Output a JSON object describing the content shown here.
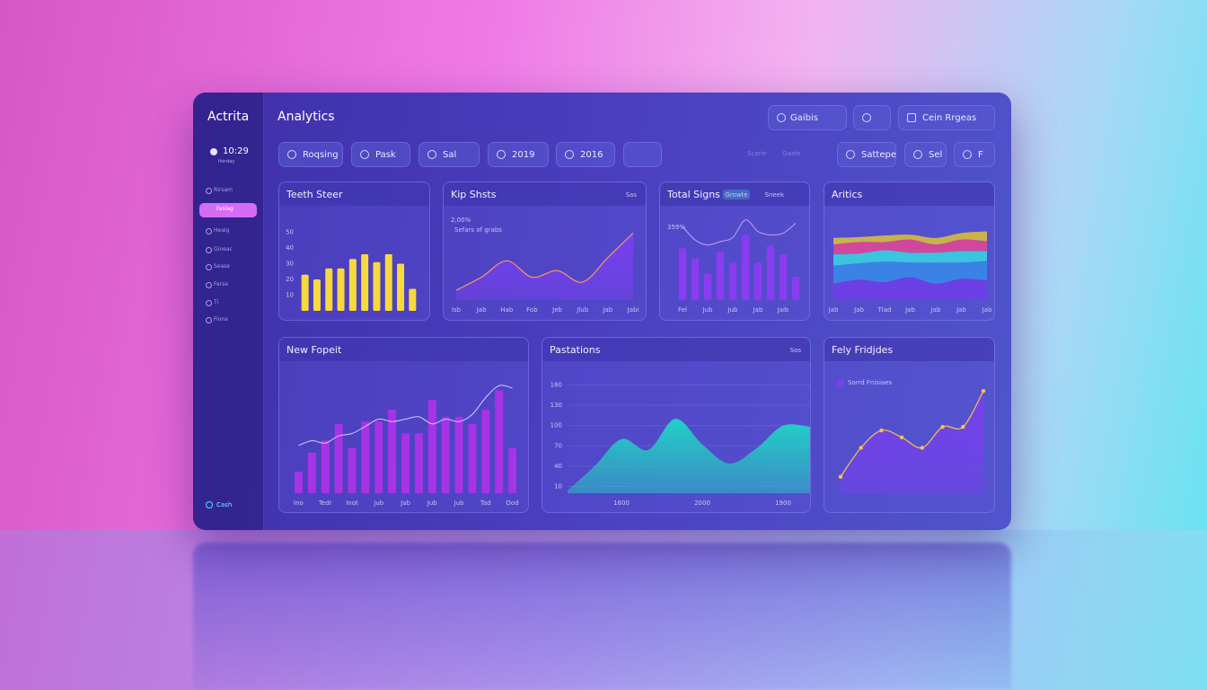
{
  "app": {
    "brand": "Actrita",
    "page_title": "Analytics",
    "time": "10:29",
    "time_sub": "Ihinday"
  },
  "top_buttons": [
    "Gaibis",
    "Cein Rrgeas"
  ],
  "filters": [
    "Roqsing",
    "Pask",
    "Sal",
    "2019",
    "2016"
  ],
  "hint_links": [
    "Scarie",
    "Gaale"
  ],
  "right_filters": [
    "Sattepe",
    "Sel",
    "F"
  ],
  "sidebar": {
    "items": [
      "Rirsam",
      "Faslag",
      "Heaig",
      "Gineac",
      "Sease",
      "Ferse",
      "Ti",
      "Fiona"
    ],
    "active": 1,
    "footer": "Cash"
  },
  "charts": [
    {
      "type": "bar",
      "title": "Teeth Steer",
      "values": [
        23,
        20,
        27,
        27,
        33,
        36,
        31,
        36,
        30,
        14
      ],
      "color": "#f7d93e",
      "ylim": [
        0,
        60
      ],
      "yticks": [
        10,
        20,
        30,
        40,
        50
      ],
      "grid": false
    },
    {
      "type": "area",
      "title": "Kip Shsts",
      "header_note": "Sas",
      "headline": "2,00%",
      "subline": "Sefars of grabs",
      "categories": [
        "Isb",
        "Jab",
        "Hab",
        "Fob",
        "Jeb",
        "Jlub",
        "Jab",
        "Jabi"
      ],
      "values": [
        12,
        28,
        48,
        28,
        36,
        22,
        52,
        82
      ],
      "color": "#7b3ff2",
      "line_color": "#f59a5e",
      "ylim": [
        0,
        100
      ]
    },
    {
      "type": "bar",
      "title": "Total Signs",
      "badge": "Growte",
      "header_note": "Sneek",
      "headline": "359%",
      "categories": [
        "Fel",
        null,
        "Jub",
        null,
        "Jub",
        null,
        "Jab",
        null,
        "Jaib",
        null
      ],
      "values": [
        62,
        50,
        32,
        58,
        45,
        78,
        45,
        65,
        55,
        28
      ],
      "color": "#8a3cf0",
      "line": {
        "values": [
          88,
          72,
          66,
          70,
          75,
          96,
          82,
          78,
          80,
          92
        ],
        "color": "#c89af8"
      },
      "ylim": [
        0,
        100
      ]
    },
    {
      "type": "stacked_area",
      "title": "Aritics",
      "categories": [
        "Jab",
        "Jab",
        "Tlad",
        "Jab",
        "Jab",
        "Jab",
        "Jab"
      ],
      "ylim": [
        0,
        100
      ],
      "series": [
        {
          "color": "#6b3fe3",
          "values": [
            20,
            25,
            22,
            28,
            20,
            26,
            24
          ]
        },
        {
          "color": "#3b82e6",
          "values": [
            22,
            20,
            25,
            18,
            26,
            20,
            24
          ]
        },
        {
          "color": "#3cc3e0",
          "values": [
            14,
            12,
            14,
            12,
            12,
            14,
            12
          ]
        },
        {
          "color": "#d1479d",
          "values": [
            12,
            14,
            10,
            16,
            10,
            14,
            12
          ]
        },
        {
          "color": "#c9b24c",
          "values": [
            8,
            6,
            8,
            6,
            8,
            8,
            12
          ]
        }
      ]
    },
    {
      "type": "bar",
      "title": "New Fopeit",
      "categories": [
        "Ino",
        null,
        "Tedr",
        null,
        "Inot",
        null,
        "Jub",
        null,
        "Jab",
        null,
        "Jub",
        null,
        "Jub",
        null,
        "Tad",
        null,
        "Ood"
      ],
      "values": [
        18,
        34,
        44,
        58,
        38,
        60,
        60,
        70,
        50,
        50,
        78,
        64,
        64,
        58,
        70,
        86,
        38
      ],
      "color": "#a733e6",
      "line": {
        "values": [
          40,
          44,
          42,
          48,
          50,
          56,
          62,
          60,
          62,
          64,
          58,
          62,
          60,
          66,
          80,
          90,
          88
        ],
        "color": "#d8c8ff"
      },
      "ylim": [
        0,
        100
      ]
    },
    {
      "type": "area",
      "title": "Pastations",
      "header_note": "Sos",
      "categories": [
        null,
        null,
        "1600",
        null,
        null,
        "2000",
        null,
        null,
        "1900",
        null
      ],
      "values": [
        4,
        40,
        80,
        64,
        110,
        72,
        44,
        66,
        100,
        98
      ],
      "color": "#1fd8c5",
      "ylim": [
        0,
        170
      ],
      "yticks": [
        10,
        40,
        70,
        100,
        130,
        160
      ],
      "grid": true
    },
    {
      "type": "area",
      "title": "Fely Fridjdes",
      "legend": "Sorrd Fnisiaes",
      "values": [
        15,
        40,
        55,
        49,
        40,
        58,
        58,
        89
      ],
      "color": "#7a3ef0",
      "line_color": "#f3c545",
      "point_color": "#f3c545",
      "ylim": [
        0,
        100
      ]
    }
  ]
}
